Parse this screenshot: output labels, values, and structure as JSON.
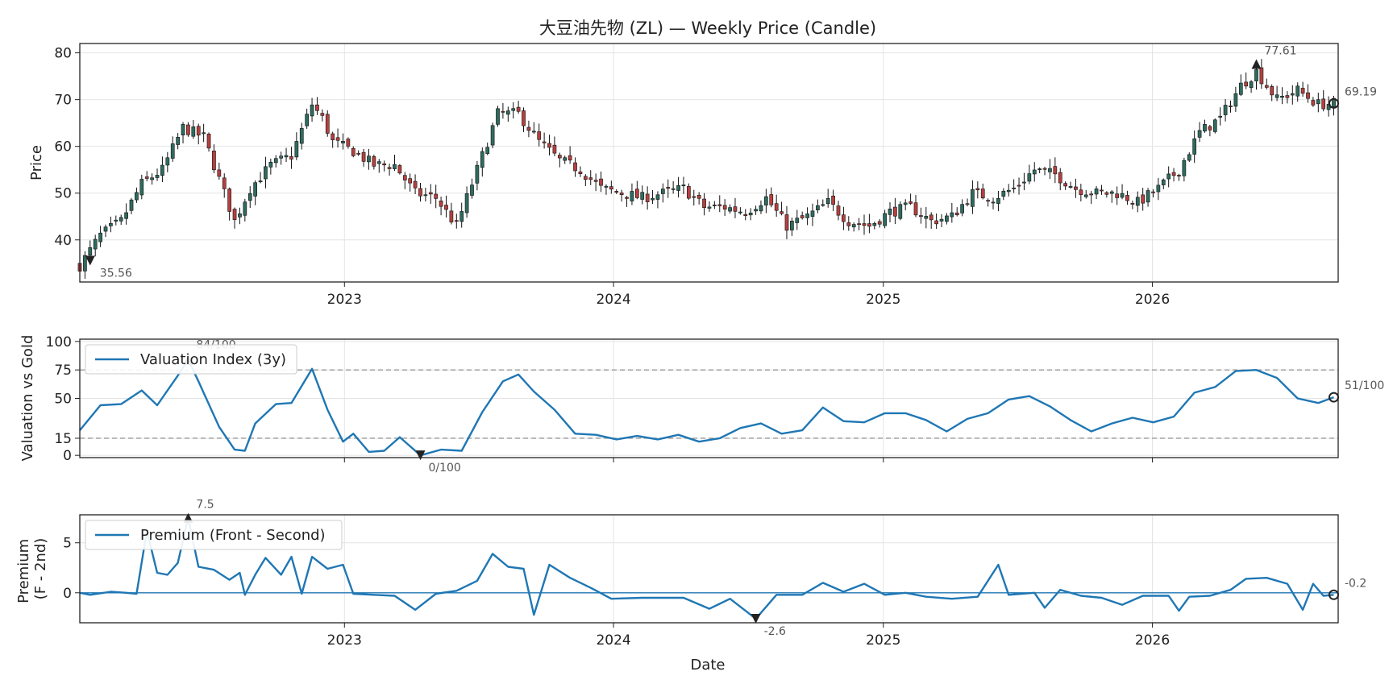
{
  "chart_data": [
    {
      "type": "candlestick",
      "title": "大豆油先物 (ZL) — Weekly Price (Candle)",
      "ylabel": "Price",
      "ylim": [
        31,
        82
      ],
      "yticks": [
        "80",
        "70",
        "60",
        "50",
        "40"
      ],
      "xlim": [
        "2022-01-07",
        "2026-09-10"
      ],
      "xticks": [
        "2023",
        "2024",
        "2025",
        "2026"
      ],
      "up_color": "#2e6b5e",
      "down_color": "#b5403f",
      "grid": true,
      "annotations": [
        {
          "label": "77.61",
          "x": "2026-05-22",
          "y": 77.61,
          "marker": "triangle-up"
        },
        {
          "label": "35.56",
          "x": "2022-01-21",
          "y": 35.56,
          "marker": "triangle-down"
        },
        {
          "label": "69.19",
          "x": "2026-09-04",
          "y": 69.19,
          "marker": "circle"
        }
      ],
      "anchors": [
        [
          "2022-01-07",
          34.5
        ],
        [
          "2022-02-04",
          41
        ],
        [
          "2022-03-04",
          44
        ],
        [
          "2022-04-01",
          52
        ],
        [
          "2022-04-29",
          55
        ],
        [
          "2022-05-27",
          64
        ],
        [
          "2022-06-24",
          62
        ],
        [
          "2022-07-22",
          50
        ],
        [
          "2022-08-05",
          44
        ],
        [
          "2022-08-26",
          51
        ],
        [
          "2022-09-23",
          56
        ],
        [
          "2022-10-21",
          58
        ],
        [
          "2022-11-18",
          69
        ],
        [
          "2022-12-02",
          66
        ],
        [
          "2022-12-16",
          61
        ],
        [
          "2023-01-13",
          59
        ],
        [
          "2023-02-10",
          56
        ],
        [
          "2023-03-10",
          56
        ],
        [
          "2023-04-07",
          50
        ],
        [
          "2023-05-05",
          49
        ],
        [
          "2023-06-02",
          43
        ],
        [
          "2023-06-30",
          55
        ],
        [
          "2023-07-28",
          67
        ],
        [
          "2023-08-25",
          67
        ],
        [
          "2023-09-22",
          61
        ],
        [
          "2023-10-20",
          57
        ],
        [
          "2023-11-17",
          55
        ],
        [
          "2023-12-15",
          51
        ],
        [
          "2024-01-12",
          50
        ],
        [
          "2024-02-09",
          49
        ],
        [
          "2024-03-08",
          50
        ],
        [
          "2024-04-05",
          51
        ],
        [
          "2024-05-03",
          47
        ],
        [
          "2024-05-31",
          47
        ],
        [
          "2024-06-28",
          46
        ],
        [
          "2024-07-26",
          49
        ],
        [
          "2024-08-23",
          43
        ],
        [
          "2024-09-20",
          45
        ],
        [
          "2024-10-18",
          48
        ],
        [
          "2024-11-15",
          44
        ],
        [
          "2024-12-13",
          43
        ],
        [
          "2025-01-10",
          46
        ],
        [
          "2025-02-07",
          47
        ],
        [
          "2025-03-07",
          44
        ],
        [
          "2025-04-04",
          45
        ],
        [
          "2025-05-02",
          50
        ],
        [
          "2025-05-30",
          49
        ],
        [
          "2025-06-27",
          51
        ],
        [
          "2025-07-25",
          55
        ],
        [
          "2025-08-22",
          54
        ],
        [
          "2025-09-19",
          51
        ],
        [
          "2025-10-17",
          50
        ],
        [
          "2025-11-14",
          50
        ],
        [
          "2025-12-12",
          48
        ],
        [
          "2026-01-09",
          51
        ],
        [
          "2026-02-06",
          55
        ],
        [
          "2026-03-06",
          63
        ],
        [
          "2026-04-03",
          66
        ],
        [
          "2026-05-01",
          73
        ],
        [
          "2026-05-22",
          76
        ],
        [
          "2026-06-19",
          70
        ],
        [
          "2026-07-17",
          72
        ],
        [
          "2026-08-14",
          69
        ],
        [
          "2026-09-04",
          69.19
        ]
      ]
    },
    {
      "type": "line",
      "ylabel": "Valuation vs Gold",
      "ylim": [
        -2,
        102
      ],
      "yticks": [
        "100",
        "75",
        "50",
        "15",
        "0"
      ],
      "xlim": [
        "2022-01-07",
        "2026-09-10"
      ],
      "reference_lines": [
        75,
        15
      ],
      "series": [
        {
          "name": "Valuation Index (3y)",
          "color": "#1f77b4",
          "points": [
            [
              "2022-01-07",
              22
            ],
            [
              "2022-02-04",
              44
            ],
            [
              "2022-03-04",
              45
            ],
            [
              "2022-04-01",
              57
            ],
            [
              "2022-04-22",
              44
            ],
            [
              "2022-05-20",
              70
            ],
            [
              "2022-06-03",
              84
            ],
            [
              "2022-06-17",
              65
            ],
            [
              "2022-07-15",
              25
            ],
            [
              "2022-08-05",
              5
            ],
            [
              "2022-08-19",
              4
            ],
            [
              "2022-09-02",
              28
            ],
            [
              "2022-09-30",
              45
            ],
            [
              "2022-10-21",
              46
            ],
            [
              "2022-11-18",
              76
            ],
            [
              "2022-12-09",
              40
            ],
            [
              "2022-12-30",
              12
            ],
            [
              "2023-01-13",
              19
            ],
            [
              "2023-02-03",
              3
            ],
            [
              "2023-02-24",
              4
            ],
            [
              "2023-03-17",
              16
            ],
            [
              "2023-04-14",
              0
            ],
            [
              "2023-05-12",
              5
            ],
            [
              "2023-06-09",
              4
            ],
            [
              "2023-07-07",
              38
            ],
            [
              "2023-08-04",
              65
            ],
            [
              "2023-08-25",
              71
            ],
            [
              "2023-09-15",
              56
            ],
            [
              "2023-10-13",
              40
            ],
            [
              "2023-11-10",
              19
            ],
            [
              "2023-12-08",
              18
            ],
            [
              "2024-01-05",
              14
            ],
            [
              "2024-02-02",
              17
            ],
            [
              "2024-03-01",
              14
            ],
            [
              "2024-03-29",
              18
            ],
            [
              "2024-04-26",
              12
            ],
            [
              "2024-05-24",
              15
            ],
            [
              "2024-06-21",
              24
            ],
            [
              "2024-07-19",
              28
            ],
            [
              "2024-08-16",
              19
            ],
            [
              "2024-09-13",
              22
            ],
            [
              "2024-10-11",
              42
            ],
            [
              "2024-11-08",
              30
            ],
            [
              "2024-12-06",
              29
            ],
            [
              "2025-01-03",
              37
            ],
            [
              "2025-01-31",
              37
            ],
            [
              "2025-02-28",
              31
            ],
            [
              "2025-03-28",
              21
            ],
            [
              "2025-04-25",
              32
            ],
            [
              "2025-05-23",
              37
            ],
            [
              "2025-06-20",
              49
            ],
            [
              "2025-07-18",
              52
            ],
            [
              "2025-08-15",
              43
            ],
            [
              "2025-09-12",
              31
            ],
            [
              "2025-10-10",
              21
            ],
            [
              "2025-11-07",
              28
            ],
            [
              "2025-12-05",
              33
            ],
            [
              "2026-01-02",
              29
            ],
            [
              "2026-01-30",
              34
            ],
            [
              "2026-02-27",
              55
            ],
            [
              "2026-03-27",
              60
            ],
            [
              "2026-04-24",
              74
            ],
            [
              "2026-05-22",
              75
            ],
            [
              "2026-06-19",
              68
            ],
            [
              "2026-07-17",
              50
            ],
            [
              "2026-08-14",
              46
            ],
            [
              "2026-09-04",
              51
            ]
          ]
        }
      ],
      "annotations": [
        {
          "label": "84/100",
          "x": "2022-06-03",
          "y": 84,
          "marker": "triangle-up"
        },
        {
          "label": "0/100",
          "x": "2023-04-14",
          "y": 0,
          "marker": "triangle-down"
        },
        {
          "label": "51/100",
          "x": "2026-09-04",
          "y": 51,
          "marker": "circle"
        }
      ]
    },
    {
      "type": "line",
      "ylabel": "Premium\n(F - 2nd)",
      "ylabel_lines": [
        "Premium",
        "(F - 2nd)"
      ],
      "ylim": [
        -3.0,
        7.8
      ],
      "yticks": [
        "5",
        "0"
      ],
      "xlim": [
        "2022-01-07",
        "2026-09-10"
      ],
      "xticks": [
        "2023",
        "2024",
        "2025",
        "2026"
      ],
      "xlabel": "Date",
      "reference_lines": [
        0
      ],
      "series": [
        {
          "name": "Premium (Front - Second)",
          "color": "#1f77b4",
          "points": [
            [
              "2022-01-07",
              0.0
            ],
            [
              "2022-01-21",
              -0.2
            ],
            [
              "2022-02-18",
              0.1
            ],
            [
              "2022-03-11",
              0.0
            ],
            [
              "2022-03-25",
              -0.1
            ],
            [
              "2022-04-08",
              6.2
            ],
            [
              "2022-04-22",
              2.0
            ],
            [
              "2022-05-06",
              1.8
            ],
            [
              "2022-05-20",
              3.0
            ],
            [
              "2022-06-03",
              7.5
            ],
            [
              "2022-06-17",
              2.6
            ],
            [
              "2022-07-08",
              2.3
            ],
            [
              "2022-07-29",
              1.3
            ],
            [
              "2022-08-12",
              2.0
            ],
            [
              "2022-08-19",
              -0.2
            ],
            [
              "2022-09-02",
              1.8
            ],
            [
              "2022-09-16",
              3.5
            ],
            [
              "2022-10-07",
              1.8
            ],
            [
              "2022-10-21",
              3.6
            ],
            [
              "2022-11-04",
              -0.1
            ],
            [
              "2022-11-18",
              3.6
            ],
            [
              "2022-12-09",
              2.4
            ],
            [
              "2022-12-30",
              2.8
            ],
            [
              "2023-01-13",
              -0.1
            ],
            [
              "2023-02-10",
              -0.2
            ],
            [
              "2023-03-10",
              -0.3
            ],
            [
              "2023-04-07",
              -1.7
            ],
            [
              "2023-05-05",
              -0.1
            ],
            [
              "2023-06-02",
              0.2
            ],
            [
              "2023-06-30",
              1.2
            ],
            [
              "2023-07-21",
              3.9
            ],
            [
              "2023-08-11",
              2.6
            ],
            [
              "2023-09-01",
              2.4
            ],
            [
              "2023-09-15",
              -2.2
            ],
            [
              "2023-10-06",
              2.8
            ],
            [
              "2023-11-03",
              1.5
            ],
            [
              "2023-12-01",
              0.5
            ],
            [
              "2023-12-29",
              -0.6
            ],
            [
              "2024-02-09",
              -0.5
            ],
            [
              "2024-04-05",
              -0.5
            ],
            [
              "2024-05-10",
              -1.6
            ],
            [
              "2024-06-07",
              -0.6
            ],
            [
              "2024-07-12",
              -2.6
            ],
            [
              "2024-08-09",
              -0.2
            ],
            [
              "2024-09-13",
              -0.2
            ],
            [
              "2024-10-11",
              1.0
            ],
            [
              "2024-11-08",
              0.1
            ],
            [
              "2024-12-06",
              0.9
            ],
            [
              "2025-01-03",
              -0.2
            ],
            [
              "2025-01-31",
              0.0
            ],
            [
              "2025-02-28",
              -0.4
            ],
            [
              "2025-04-04",
              -0.6
            ],
            [
              "2025-05-09",
              -0.4
            ],
            [
              "2025-06-06",
              2.8
            ],
            [
              "2025-06-20",
              -0.2
            ],
            [
              "2025-07-25",
              0.0
            ],
            [
              "2025-08-08",
              -1.5
            ],
            [
              "2025-08-29",
              0.3
            ],
            [
              "2025-09-26",
              -0.3
            ],
            [
              "2025-10-24",
              -0.5
            ],
            [
              "2025-11-21",
              -1.2
            ],
            [
              "2025-12-19",
              -0.3
            ],
            [
              "2026-01-23",
              -0.3
            ],
            [
              "2026-02-06",
              -1.8
            ],
            [
              "2026-02-20",
              -0.4
            ],
            [
              "2026-03-20",
              -0.3
            ],
            [
              "2026-04-17",
              0.3
            ],
            [
              "2026-05-08",
              1.4
            ],
            [
              "2026-06-05",
              1.5
            ],
            [
              "2026-07-03",
              0.9
            ],
            [
              "2026-07-24",
              -1.7
            ],
            [
              "2026-08-07",
              0.9
            ],
            [
              "2026-08-21",
              -0.3
            ],
            [
              "2026-09-04",
              -0.2
            ]
          ]
        }
      ],
      "annotations": [
        {
          "label": "7.5",
          "x": "2022-06-03",
          "y": 7.5,
          "marker": "triangle-up"
        },
        {
          "label": "-2.6",
          "x": "2024-07-12",
          "y": -2.6,
          "marker": "triangle-down"
        },
        {
          "label": "-0.2",
          "x": "2026-09-04",
          "y": -0.2,
          "marker": "circle"
        }
      ]
    }
  ]
}
